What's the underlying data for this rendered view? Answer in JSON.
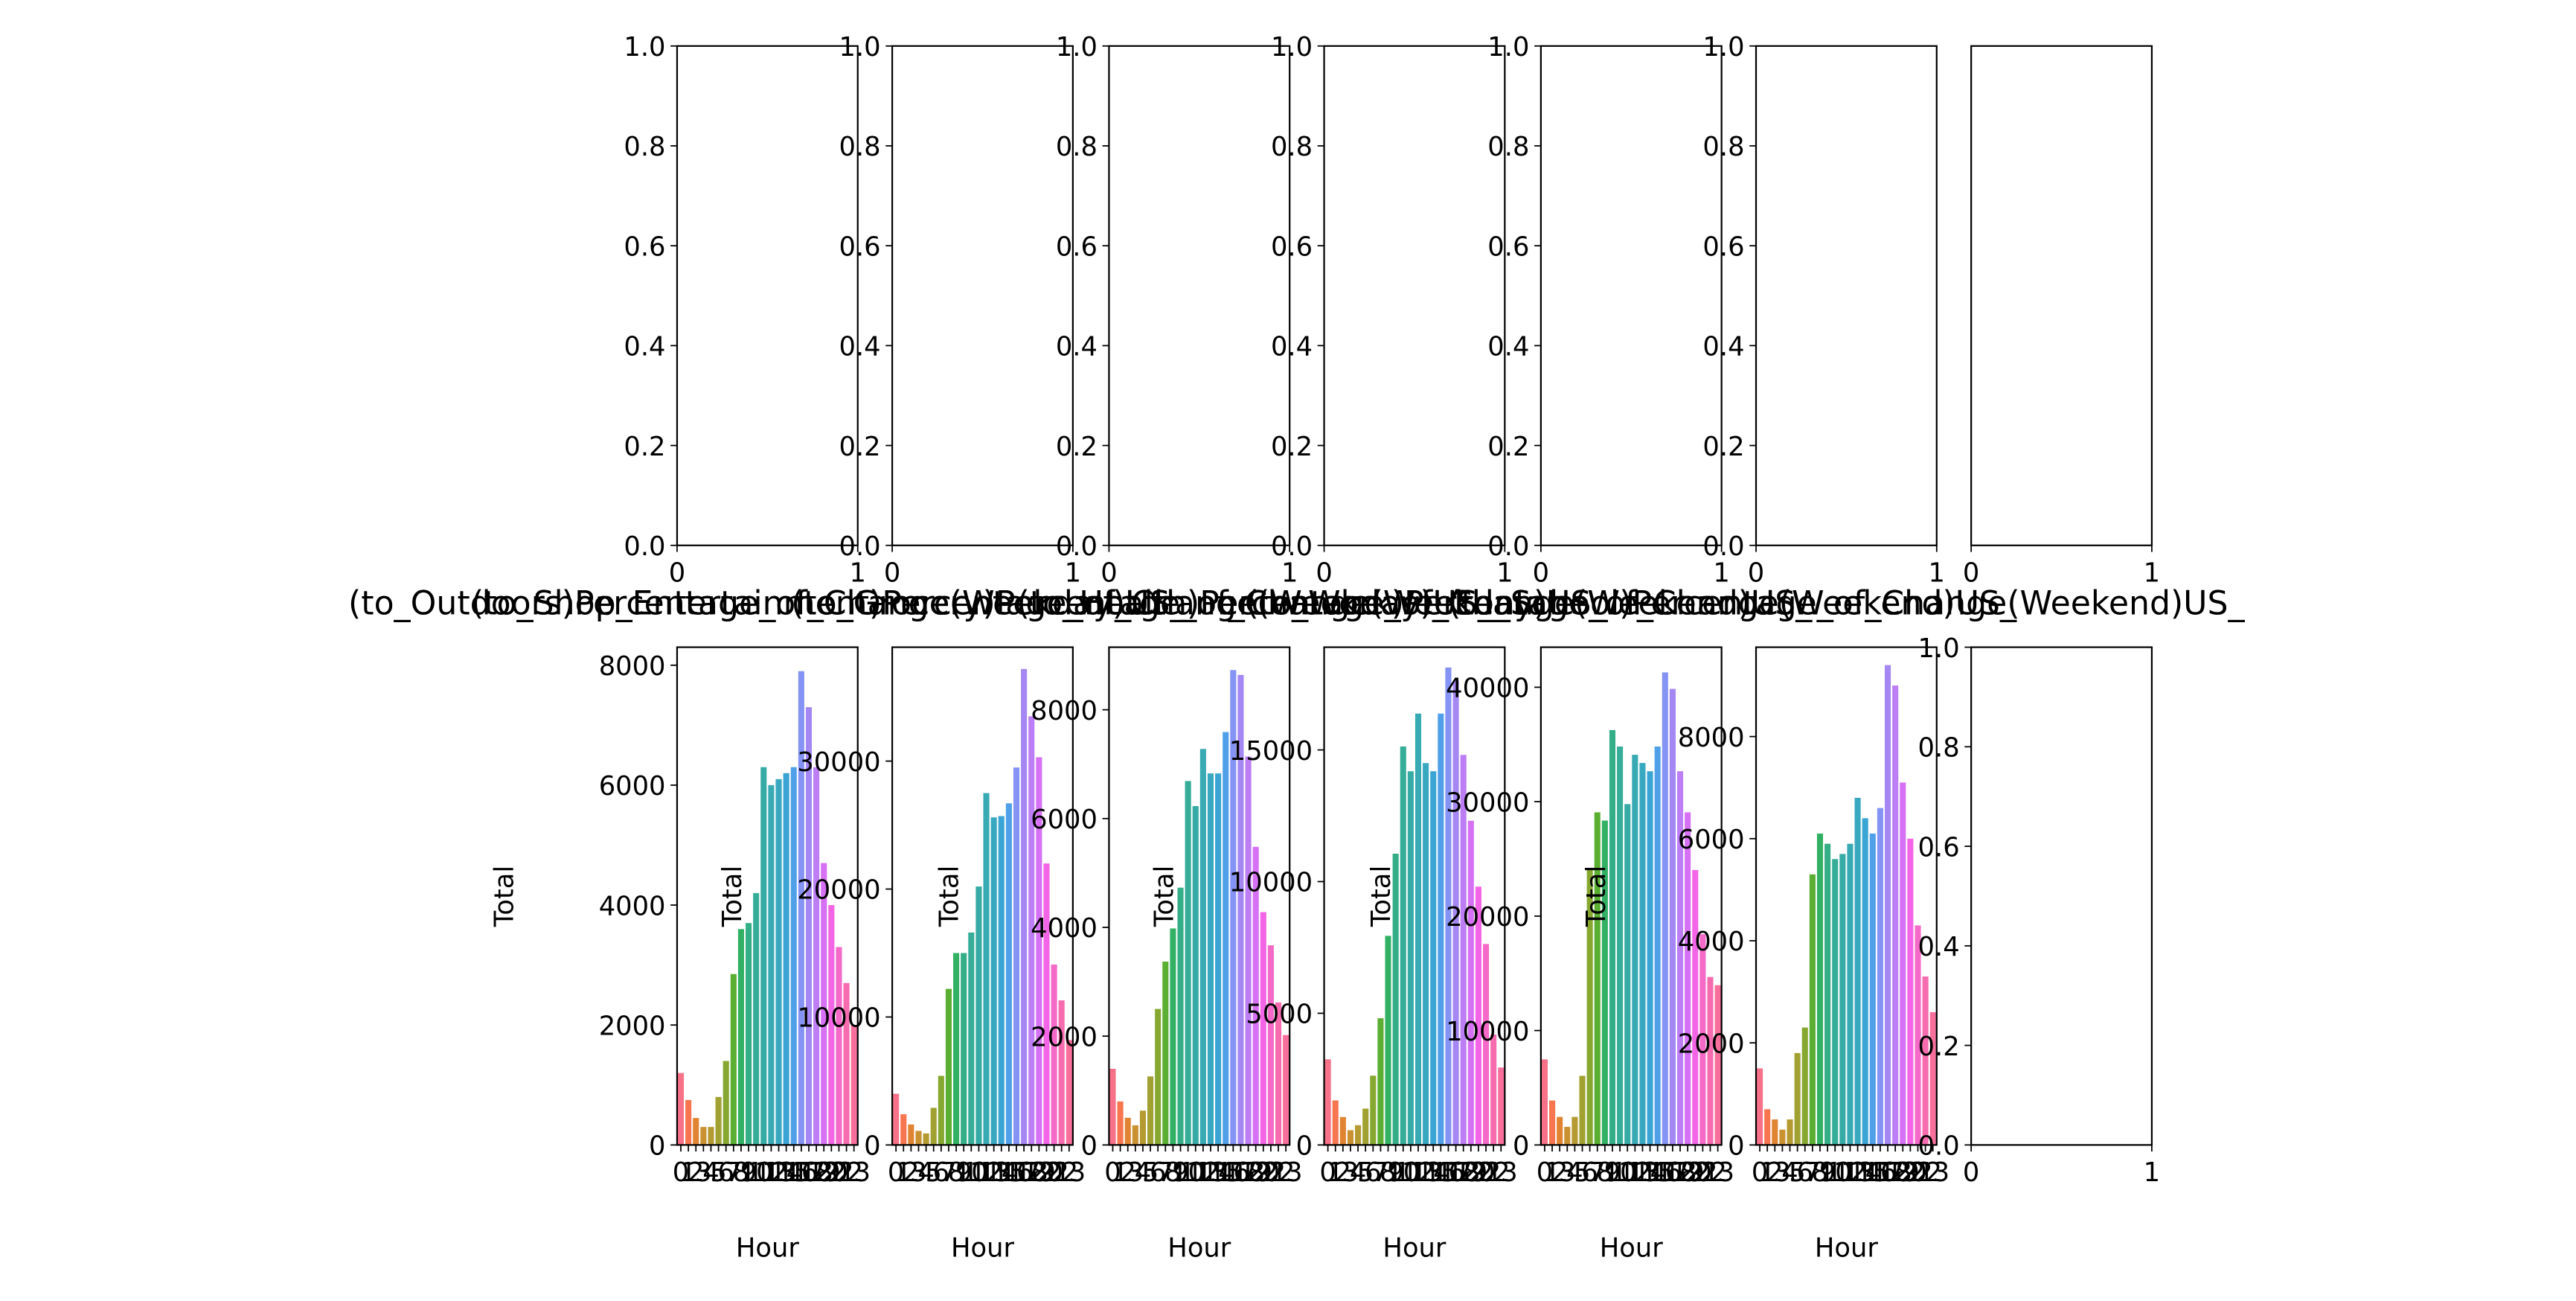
{
  "chart_data": [
    {
      "type": "empty",
      "xlim": [
        0,
        1
      ],
      "xticks": [
        0,
        1
      ],
      "ylim": [
        0,
        1
      ],
      "yticks": [
        {
          "value": 0,
          "label": "0.0"
        },
        {
          "value": 0.2,
          "label": "0.2"
        },
        {
          "value": 0.4,
          "label": "0.4"
        },
        {
          "value": 0.6,
          "label": "0.6"
        },
        {
          "value": 0.8,
          "label": "0.8"
        },
        {
          "value": 1,
          "label": "1.0"
        }
      ]
    },
    {
      "type": "empty",
      "xlim": [
        0,
        1
      ],
      "xticks": [
        0,
        1
      ],
      "ylim": [
        0,
        1
      ],
      "yticks": [
        {
          "value": 0,
          "label": "0.0"
        },
        {
          "value": 0.2,
          "label": "0.2"
        },
        {
          "value": 0.4,
          "label": "0.4"
        },
        {
          "value": 0.6,
          "label": "0.6"
        },
        {
          "value": 0.8,
          "label": "0.8"
        },
        {
          "value": 1,
          "label": "1.0"
        }
      ]
    },
    {
      "type": "empty",
      "xlim": [
        0,
        1
      ],
      "xticks": [
        0,
        1
      ],
      "ylim": [
        0,
        1
      ],
      "yticks": [
        {
          "value": 0,
          "label": "0.0"
        },
        {
          "value": 0.2,
          "label": "0.2"
        },
        {
          "value": 0.4,
          "label": "0.4"
        },
        {
          "value": 0.6,
          "label": "0.6"
        },
        {
          "value": 0.8,
          "label": "0.8"
        },
        {
          "value": 1,
          "label": "1.0"
        }
      ]
    },
    {
      "type": "empty",
      "xlim": [
        0,
        1
      ],
      "xticks": [
        0,
        1
      ],
      "ylim": [
        0,
        1
      ],
      "yticks": [
        {
          "value": 0,
          "label": "0.0"
        },
        {
          "value": 0.2,
          "label": "0.2"
        },
        {
          "value": 0.4,
          "label": "0.4"
        },
        {
          "value": 0.6,
          "label": "0.6"
        },
        {
          "value": 0.8,
          "label": "0.8"
        },
        {
          "value": 1,
          "label": "1.0"
        }
      ]
    },
    {
      "type": "empty",
      "xlim": [
        0,
        1
      ],
      "xticks": [
        0,
        1
      ],
      "ylim": [
        0,
        1
      ],
      "yticks": [
        {
          "value": 0,
          "label": "0.0"
        },
        {
          "value": 0.2,
          "label": "0.2"
        },
        {
          "value": 0.4,
          "label": "0.4"
        },
        {
          "value": 0.6,
          "label": "0.6"
        },
        {
          "value": 0.8,
          "label": "0.8"
        },
        {
          "value": 1,
          "label": "1.0"
        }
      ]
    },
    {
      "type": "empty",
      "xlim": [
        0,
        1
      ],
      "xticks": [
        0,
        1
      ],
      "ylim": [
        0,
        1
      ],
      "yticks": [
        {
          "value": 0,
          "label": "0.0"
        },
        {
          "value": 0.2,
          "label": "0.2"
        },
        {
          "value": 0.4,
          "label": "0.4"
        },
        {
          "value": 0.6,
          "label": "0.6"
        },
        {
          "value": 0.8,
          "label": "0.8"
        },
        {
          "value": 1,
          "label": "1.0"
        }
      ]
    },
    {
      "type": "empty",
      "xlim": [
        0,
        1
      ],
      "xticks": [
        0,
        1
      ],
      "ylim": [
        0,
        1
      ],
      "yticks": []
    },
    {
      "type": "bar",
      "title": "(to_Outdoors)Percentage_of_Change(Weekday)US_",
      "x_label": "Hour",
      "y_label": "Total",
      "categories": [
        "0",
        "1",
        "2",
        "3",
        "4",
        "5",
        "6",
        "7",
        "8",
        "9",
        "10",
        "11",
        "12",
        "13",
        "14",
        "15",
        "16",
        "17",
        "18",
        "19",
        "20",
        "21",
        "22",
        "23"
      ],
      "values": [
        1200,
        750,
        450,
        300,
        300,
        800,
        1400,
        2850,
        3600,
        3700,
        4200,
        6300,
        6000,
        6100,
        6200,
        6300,
        7900,
        7300,
        6300,
        4700,
        4000,
        3300,
        2700,
        2000
      ],
      "colors": [
        "#f77189",
        "#f7754f",
        "#e18432",
        "#ca9131",
        "#b59a31",
        "#a0a131",
        "#86a831",
        "#5aae31",
        "#32b165",
        "#34ae86",
        "#35ad98",
        "#36aba6",
        "#37aab3",
        "#38a8c1",
        "#3aa5d4",
        "#50a0e9",
        "#8593f4",
        "#a587f4",
        "#bd7df4",
        "#d670f4",
        "#f365e6",
        "#f569c8",
        "#f66caf",
        "#f76f9a"
      ],
      "ylim": [
        0,
        8300
      ],
      "yticks": [
        0,
        2000,
        4000,
        6000,
        8000
      ]
    },
    {
      "type": "bar",
      "title": "(to_Shop_Entertainment)Percentage_of_Change(Weekday)US_",
      "x_label": "Hour",
      "y_label": "Total",
      "categories": [
        "0",
        "1",
        "2",
        "3",
        "4",
        "5",
        "6",
        "7",
        "8",
        "9",
        "10",
        "11",
        "12",
        "13",
        "14",
        "15",
        "16",
        "17",
        "18",
        "19",
        "20",
        "21",
        "22",
        "23"
      ],
      "values": [
        4000,
        2400,
        1600,
        1100,
        900,
        2900,
        5400,
        12200,
        15000,
        15000,
        16600,
        20200,
        27500,
        25600,
        25700,
        26700,
        29500,
        37200,
        33500,
        30300,
        22000,
        14100,
        11300,
        8200
      ],
      "colors": [
        "#f77189",
        "#f7754f",
        "#e18432",
        "#ca9131",
        "#b59a31",
        "#a0a131",
        "#86a831",
        "#5aae31",
        "#32b165",
        "#34ae86",
        "#35ad98",
        "#36aba6",
        "#37aab3",
        "#38a8c1",
        "#3aa5d4",
        "#50a0e9",
        "#8593f4",
        "#a587f4",
        "#bd7df4",
        "#d670f4",
        "#f365e6",
        "#f569c8",
        "#f66caf",
        "#f76f9a"
      ],
      "ylim": [
        0,
        38900
      ],
      "yticks": [
        0,
        10000,
        20000,
        30000
      ]
    },
    {
      "type": "bar",
      "title": "(to_Grocery)Percentage_of_Change(Weekday)US_",
      "x_label": "Hour",
      "y_label": "Total",
      "categories": [
        "0",
        "1",
        "2",
        "3",
        "4",
        "5",
        "6",
        "7",
        "8",
        "9",
        "10",
        "11",
        "12",
        "13",
        "14",
        "15",
        "16",
        "17",
        "18",
        "19",
        "20",
        "21",
        "22",
        "23"
      ],
      "values": [
        1400,
        800,
        500,
        360,
        630,
        1260,
        2500,
        3370,
        3980,
        4730,
        6690,
        6230,
        7280,
        6830,
        6830,
        7590,
        8730,
        8640,
        7140,
        5480,
        4280,
        3670,
        2620,
        2020
      ],
      "colors": [
        "#f77189",
        "#f7754f",
        "#e18432",
        "#ca9131",
        "#b59a31",
        "#a0a131",
        "#86a831",
        "#5aae31",
        "#32b165",
        "#34ae86",
        "#35ad98",
        "#36aba6",
        "#37aab3",
        "#38a8c1",
        "#3aa5d4",
        "#50a0e9",
        "#8593f4",
        "#a587f4",
        "#bd7df4",
        "#d670f4",
        "#f365e6",
        "#f569c8",
        "#f66caf",
        "#f76f9a"
      ],
      "ylim": [
        0,
        9150
      ],
      "yticks": [
        0,
        2000,
        4000,
        6000,
        8000
      ]
    },
    {
      "type": "bar",
      "title": "(to_Health)Percentage_of_Change(Weekend)US_",
      "x_label": "Hour",
      "y_label": "Total",
      "categories": [
        "0",
        "1",
        "2",
        "3",
        "4",
        "5",
        "6",
        "7",
        "8",
        "9",
        "10",
        "11",
        "12",
        "13",
        "14",
        "15",
        "16",
        "17",
        "18",
        "19",
        "20",
        "21",
        "22",
        "23"
      ],
      "values": [
        3250,
        1690,
        1060,
        560,
        750,
        1380,
        2630,
        4810,
        7940,
        11060,
        15130,
        14190,
        16380,
        14500,
        14190,
        16380,
        18130,
        17630,
        14810,
        12310,
        9810,
        7630,
        4190,
        2940
      ],
      "colors": [
        "#f77189",
        "#f7754f",
        "#e18432",
        "#ca9131",
        "#b59a31",
        "#a0a131",
        "#86a831",
        "#5aae31",
        "#32b165",
        "#34ae86",
        "#35ad98",
        "#36aba6",
        "#37aab3",
        "#38a8c1",
        "#3aa5d4",
        "#50a0e9",
        "#8593f4",
        "#a587f4",
        "#bd7df4",
        "#d670f4",
        "#f365e6",
        "#f569c8",
        "#f66caf",
        "#f76f9a"
      ],
      "ylim": [
        0,
        18900
      ],
      "yticks": [
        0,
        5000,
        10000,
        15000
      ]
    },
    {
      "type": "bar",
      "title": "(to_Work)Percentage_of_Change(Weekend)US_",
      "x_label": "Hour",
      "y_label": "Total",
      "categories": [
        "0",
        "1",
        "2",
        "3",
        "4",
        "5",
        "6",
        "7",
        "8",
        "9",
        "10",
        "11",
        "12",
        "13",
        "14",
        "15",
        "16",
        "17",
        "18",
        "19",
        "20",
        "21",
        "22",
        "23"
      ],
      "values": [
        7480,
        3880,
        2450,
        1580,
        2450,
        6040,
        24030,
        29070,
        28350,
        36260,
        34820,
        29790,
        34100,
        33380,
        32660,
        34820,
        41300,
        39860,
        32660,
        29070,
        24030,
        18420,
        14680,
        13960
      ],
      "colors": [
        "#f77189",
        "#f7754f",
        "#e18432",
        "#ca9131",
        "#b59a31",
        "#a0a131",
        "#86a831",
        "#5aae31",
        "#32b165",
        "#34ae86",
        "#35ad98",
        "#36aba6",
        "#37aab3",
        "#38a8c1",
        "#3aa5d4",
        "#50a0e9",
        "#8593f4",
        "#a587f4",
        "#bd7df4",
        "#d670f4",
        "#f365e6",
        "#f569c8",
        "#f66caf",
        "#f76f9a"
      ],
      "ylim": [
        0,
        43500
      ],
      "yticks": [
        0,
        10000,
        20000,
        30000,
        40000
      ]
    },
    {
      "type": "bar",
      "title": "(to_School)Percentage_of_Change(Weekend)US_",
      "x_label": "Hour",
      "y_label": "Total",
      "categories": [
        "0",
        "1",
        "2",
        "3",
        "4",
        "5",
        "6",
        "7",
        "8",
        "9",
        "10",
        "11",
        "12",
        "13",
        "14",
        "15",
        "16",
        "17",
        "18",
        "19",
        "20",
        "21",
        "22",
        "23"
      ],
      "values": [
        1500,
        700,
        500,
        300,
        500,
        1800,
        2300,
        5300,
        6100,
        5900,
        5600,
        5700,
        5900,
        6800,
        6400,
        6100,
        6600,
        9400,
        9000,
        7100,
        6000,
        4300,
        3300,
        2600
      ],
      "colors": [
        "#f77189",
        "#f7754f",
        "#e18432",
        "#ca9131",
        "#b59a31",
        "#a0a131",
        "#86a831",
        "#5aae31",
        "#32b165",
        "#34ae86",
        "#35ad98",
        "#36aba6",
        "#37aab3",
        "#38a8c1",
        "#3aa5d4",
        "#50a0e9",
        "#8593f4",
        "#a587f4",
        "#bd7df4",
        "#d670f4",
        "#f365e6",
        "#f569c8",
        "#f66caf",
        "#f76f9a"
      ],
      "ylim": [
        0,
        9750
      ],
      "yticks": [
        0,
        2000,
        4000,
        6000,
        8000
      ]
    },
    {
      "type": "empty",
      "xlim": [
        0,
        1
      ],
      "xticks": [
        0,
        1
      ],
      "ylim": [
        0,
        1
      ],
      "yticks": [
        {
          "value": 0,
          "label": "0.0"
        },
        {
          "value": 0.2,
          "label": "0.2"
        },
        {
          "value": 0.4,
          "label": "0.4"
        },
        {
          "value": 0.6,
          "label": "0.6"
        },
        {
          "value": 0.8,
          "label": "0.8"
        },
        {
          "value": 1,
          "label": "1.0"
        }
      ]
    }
  ]
}
